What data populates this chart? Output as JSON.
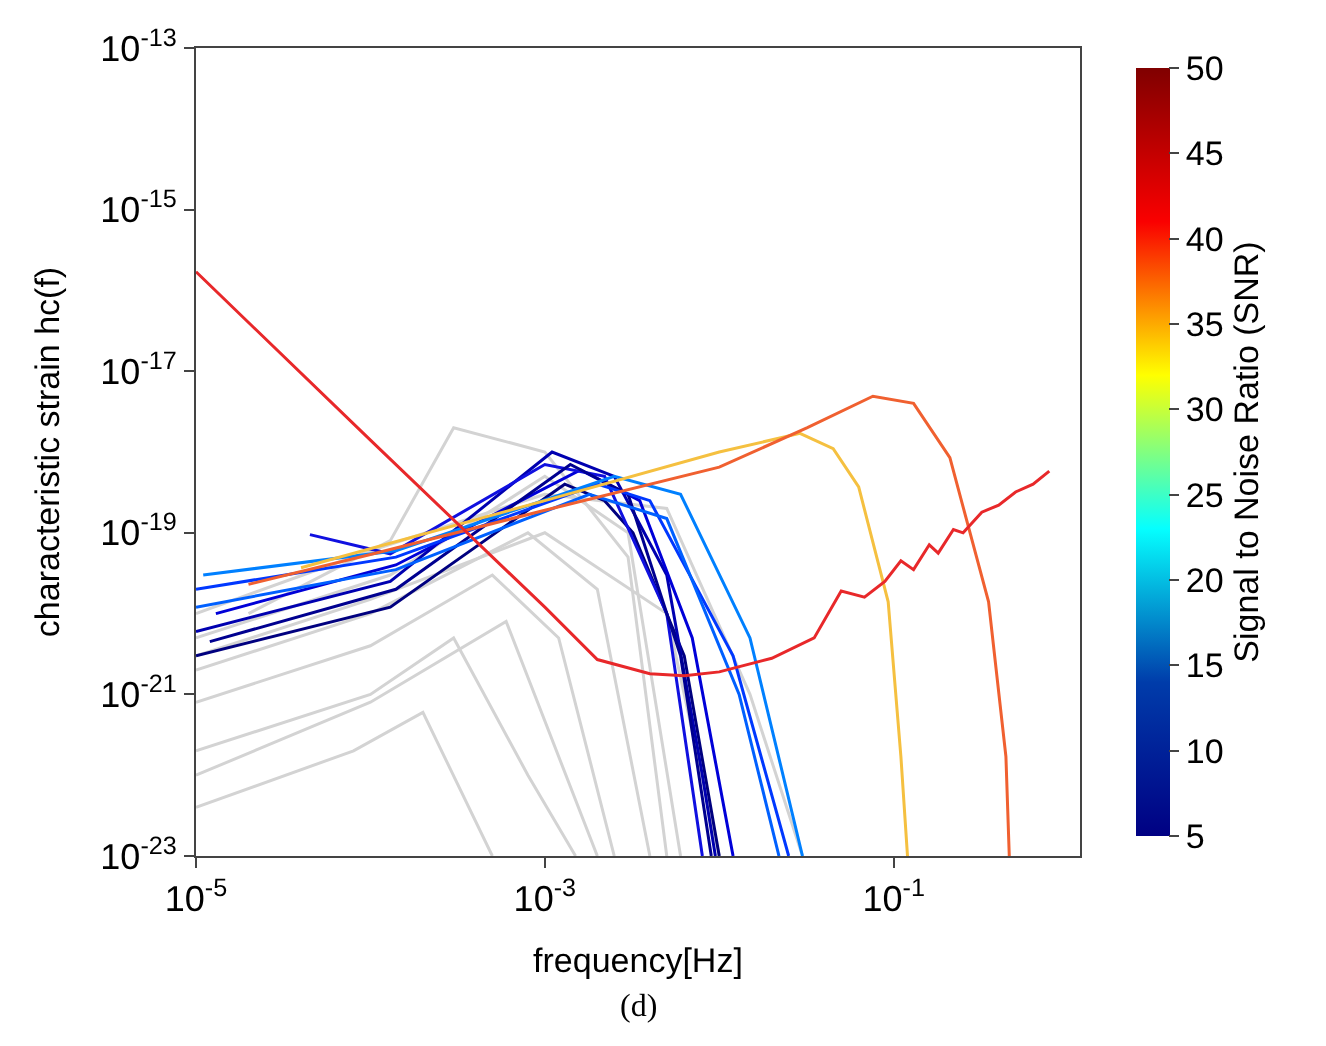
{
  "chart_data": {
    "type": "line",
    "xlabel": "frequency[Hz]",
    "ylabel": "characteristic strain hc(f)",
    "clabel": "Signal to Noise Ratio (SNR)",
    "log": "xy",
    "xlim": [
      1e-05,
      1.17
    ],
    "ylim": [
      1e-23,
      1e-13
    ],
    "xticks": [
      {
        "value": 1e-05,
        "label": "10$^{-5}$"
      },
      {
        "value": 0.001,
        "label": "10$^{-3}$"
      },
      {
        "value": 0.1,
        "label": "10$^{-1}$"
      }
    ],
    "yticks": [
      {
        "value": 1e-23,
        "label": "10$^{-23}$"
      },
      {
        "value": 1e-21,
        "label": "10$^{-21}$"
      },
      {
        "value": 1e-19,
        "label": "10$^{-19}$"
      },
      {
        "value": 1e-17,
        "label": "10$^{-17}$"
      },
      {
        "value": 1e-15,
        "label": "10$^{-15}$"
      },
      {
        "value": 1e-13,
        "label": "10$^{-13}$"
      }
    ],
    "clim": [
      5,
      50
    ],
    "cticks": [
      5,
      10,
      15,
      20,
      25,
      30,
      35,
      40,
      45,
      50
    ],
    "annotations": [
      "(d)"
    ],
    "series": [
      {
        "color": "#d3d3d3",
        "x": [
          1e-05,
          0.00013,
          0.001,
          0.003,
          0.006
        ],
        "values": [
          5e-21,
          3e-20,
          5e-19,
          1e-19,
          1e-23
        ]
      },
      {
        "color": "#d3d3d3",
        "x": [
          1e-05,
          0.0001,
          0.0008,
          0.002,
          0.004
        ],
        "values": [
          2e-21,
          1e-20,
          1e-19,
          2e-20,
          1e-23
        ]
      },
      {
        "color": "#d3d3d3",
        "x": [
          1e-05,
          0.0001,
          0.0005,
          0.0012,
          0.0025
        ],
        "values": [
          8e-22,
          4e-21,
          3e-20,
          5e-21,
          1e-23
        ]
      },
      {
        "color": "#d3d3d3",
        "x": [
          1e-05,
          0.0001,
          0.0003,
          0.0008,
          0.0015
        ],
        "values": [
          2e-22,
          1e-21,
          5e-21,
          1e-22,
          1e-23
        ]
      },
      {
        "color": "#d3d3d3",
        "x": [
          1e-05,
          8e-05,
          0.0002,
          0.0005
        ],
        "values": [
          4e-23,
          2e-22,
          6e-22,
          1e-23
        ]
      },
      {
        "color": "#d3d3d3",
        "x": [
          2e-05,
          0.00013,
          0.0003,
          0.001,
          0.003,
          0.005
        ],
        "values": [
          1e-20,
          8e-20,
          2e-18,
          1e-18,
          5e-20,
          1e-23
        ]
      },
      {
        "color": "#d3d3d3",
        "x": [
          1e-05,
          0.0001,
          0.001,
          0.005,
          0.015,
          0.03
        ],
        "values": [
          1e-20,
          6e-20,
          3e-19,
          2e-19,
          1e-21,
          1e-23
        ]
      },
      {
        "color": "#d3d3d3",
        "x": [
          1e-05,
          0.0001,
          0.001,
          0.005,
          0.01
        ],
        "values": [
          3e-21,
          1.5e-20,
          1e-19,
          1e-20,
          1e-23
        ]
      },
      {
        "color": "#d3d3d3",
        "x": [
          1e-05,
          0.0001,
          0.0006,
          0.002
        ],
        "values": [
          1e-22,
          8e-22,
          8e-21,
          1e-23
        ]
      },
      {
        "color": "#00007f",
        "x": [
          1e-05,
          0.00013,
          0.0013,
          0.0022,
          0.0032,
          0.0063,
          0.01
        ],
        "values": [
          3e-21,
          1.2e-20,
          4e-19,
          2.5e-19,
          1e-19,
          3e-21,
          1e-23
        ]
      },
      {
        "color": "#0000b0",
        "x": [
          1e-05,
          0.00013,
          0.0011,
          0.0025,
          0.005,
          0.008,
          0.0095
        ],
        "values": [
          6e-21,
          2.5e-20,
          1e-18,
          5e-19,
          3e-20,
          1e-22,
          1e-23
        ]
      },
      {
        "color": "#0000d8",
        "x": [
          1.3e-05,
          0.00014,
          0.0016,
          0.0035,
          0.007,
          0.012
        ],
        "values": [
          1e-20,
          4e-20,
          6e-19,
          2.5e-19,
          5e-21,
          1e-23
        ]
      },
      {
        "color": "#1010e0",
        "x": [
          4.5e-05,
          0.00013,
          0.001,
          0.0022,
          0.005,
          0.008
        ],
        "values": [
          9.5e-20,
          5.5e-20,
          7e-19,
          5e-19,
          1e-20,
          1e-23
        ]
      },
      {
        "color": "#000090",
        "x": [
          1.2e-05,
          0.00014,
          0.0014,
          0.003,
          0.006,
          0.009
        ],
        "values": [
          4.5e-21,
          2e-20,
          7e-19,
          3e-19,
          3e-21,
          1e-23
        ]
      },
      {
        "color": "#0038ff",
        "x": [
          1e-05,
          0.00014,
          0.002,
          0.004,
          0.012,
          0.025
        ],
        "values": [
          2e-20,
          5e-20,
          4e-19,
          2.5e-19,
          3e-21,
          1e-23
        ]
      },
      {
        "color": "#0060ff",
        "x": [
          1e-05,
          0.00014,
          0.0018,
          0.005,
          0.013,
          0.022
        ],
        "values": [
          1.2e-20,
          3.5e-20,
          3e-19,
          1.5e-19,
          1e-21,
          1e-23
        ]
      },
      {
        "color": "#0080ff",
        "x": [
          1.1e-05,
          0.00014,
          0.0025,
          0.006,
          0.015,
          0.03
        ],
        "values": [
          3e-20,
          6e-20,
          5e-19,
          3e-19,
          5e-21,
          1e-23
        ]
      },
      {
        "color": "#f5c040",
        "x": [
          4e-05,
          0.001,
          0.01,
          0.029,
          0.045,
          0.063,
          0.093,
          0.11,
          0.12
        ],
        "values": [
          3.7e-20,
          2.5e-19,
          1e-18,
          1.7e-18,
          1.1e-18,
          3.7e-19,
          1.4e-20,
          1.7e-22,
          1e-23
        ]
      },
      {
        "color": "#f06030",
        "x": [
          2e-05,
          0.0001,
          0.001,
          0.01,
          0.032,
          0.076,
          0.13,
          0.21,
          0.35,
          0.44,
          0.46
        ],
        "values": [
          2.3e-20,
          5.4e-20,
          1.9e-19,
          6.5e-19,
          2e-18,
          4.9e-18,
          4e-18,
          8.5e-19,
          1.4e-20,
          1.7e-22,
          1e-23
        ]
      },
      {
        "color": "#e8282a",
        "x": [
          1e-05,
          0.0001,
          0.001,
          0.002,
          0.004,
          0.0063,
          0.01,
          0.02,
          0.035,
          0.05,
          0.068,
          0.089,
          0.11,
          0.13,
          0.16,
          0.18,
          0.22,
          0.25,
          0.32,
          0.4,
          0.5,
          0.63,
          0.78
        ],
        "values": [
          1.7e-16,
          1.4e-18,
          1.2e-20,
          2.7e-21,
          1.8e-21,
          1.7e-21,
          1.9e-21,
          2.8e-21,
          5e-21,
          1.9e-20,
          1.6e-20,
          2.5e-20,
          4.5e-20,
          3.5e-20,
          7.1e-20,
          5.6e-20,
          1.1e-19,
          1e-19,
          1.8e-19,
          2.2e-19,
          3.2e-19,
          4e-19,
          5.8e-19
        ]
      }
    ]
  }
}
